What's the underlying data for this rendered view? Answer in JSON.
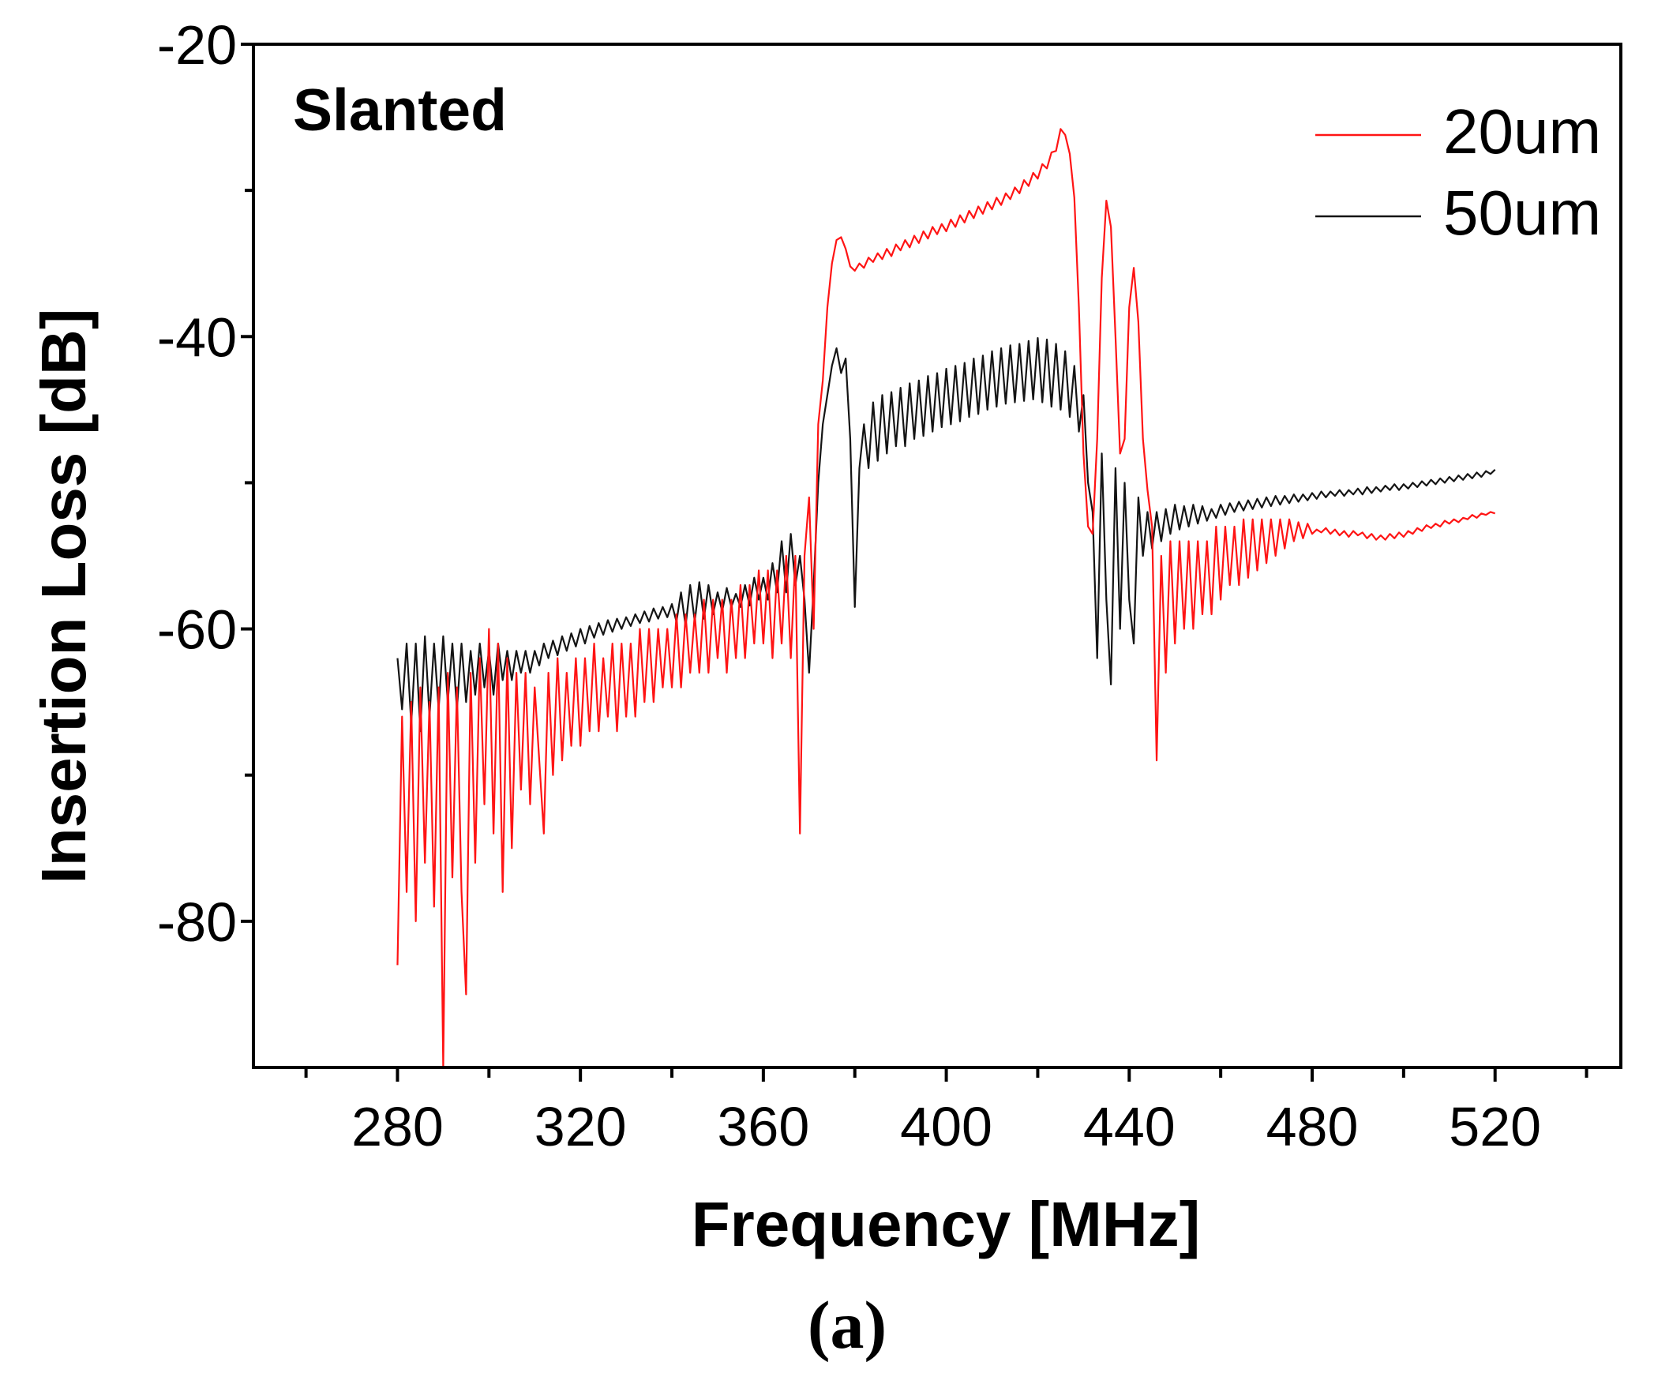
{
  "figure": {
    "panel_label": "(a)"
  },
  "chart_data": {
    "type": "line",
    "title": "",
    "xlabel": "Frequency [MHz]",
    "ylabel": "Insertion Loss [dB]",
    "xlim": [
      248.5,
      547.5
    ],
    "ylim": [
      -90,
      -20
    ],
    "x_ticks": [
      280,
      320,
      360,
      400,
      440,
      480,
      520
    ],
    "x_minor_ticks": [
      260,
      300,
      340,
      380,
      420,
      460,
      500,
      540
    ],
    "y_ticks": [
      -20,
      -40,
      -60,
      -80
    ],
    "y_minor_ticks": [
      -30,
      -50,
      -70
    ],
    "grid": false,
    "legend_position": "top-right",
    "annotations": [
      "Slanted"
    ],
    "x": [
      280,
      281,
      282,
      283,
      284,
      285,
      286,
      287,
      288,
      289,
      290,
      291,
      292,
      293,
      294,
      295,
      296,
      297,
      298,
      299,
      300,
      301,
      302,
      303,
      304,
      305,
      306,
      307,
      308,
      309,
      310,
      311,
      312,
      313,
      314,
      315,
      316,
      317,
      318,
      319,
      320,
      321,
      322,
      323,
      324,
      325,
      326,
      327,
      328,
      329,
      330,
      331,
      332,
      333,
      334,
      335,
      336,
      337,
      338,
      339,
      340,
      341,
      342,
      343,
      344,
      345,
      346,
      347,
      348,
      349,
      350,
      351,
      352,
      353,
      354,
      355,
      356,
      357,
      358,
      359,
      360,
      361,
      362,
      363,
      364,
      365,
      366,
      367,
      368,
      369,
      370,
      371,
      372,
      373,
      374,
      375,
      376,
      377,
      378,
      379,
      380,
      381,
      382,
      383,
      384,
      385,
      386,
      387,
      388,
      389,
      390,
      391,
      392,
      393,
      394,
      395,
      396,
      397,
      398,
      399,
      400,
      401,
      402,
      403,
      404,
      405,
      406,
      407,
      408,
      409,
      410,
      411,
      412,
      413,
      414,
      415,
      416,
      417,
      418,
      419,
      420,
      421,
      422,
      423,
      424,
      425,
      426,
      427,
      428,
      429,
      430,
      431,
      432,
      433,
      434,
      435,
      436,
      437,
      438,
      439,
      440,
      441,
      442,
      443,
      444,
      445,
      446,
      447,
      448,
      449,
      450,
      451,
      452,
      453,
      454,
      455,
      456,
      457,
      458,
      459,
      460,
      461,
      462,
      463,
      464,
      465,
      466,
      467,
      468,
      469,
      470,
      471,
      472,
      473,
      474,
      475,
      476,
      477,
      478,
      479,
      480,
      481,
      482,
      483,
      484,
      485,
      486,
      487,
      488,
      489,
      490,
      491,
      492,
      493,
      494,
      495,
      496,
      497,
      498,
      499,
      500,
      501,
      502,
      503,
      504,
      505,
      506,
      507,
      508,
      509,
      510,
      511,
      512,
      513,
      514,
      515,
      516,
      517,
      518,
      519,
      520
    ],
    "series": [
      {
        "name": "20um",
        "color": "#ff1414",
        "values": [
          -83,
          -66,
          -78,
          -65,
          -80,
          -64,
          -76,
          -65,
          -79,
          -64,
          -90,
          -63,
          -77,
          -64,
          -78,
          -85,
          -63,
          -76,
          -62,
          -72,
          -60,
          -74,
          -61,
          -78,
          -62,
          -75,
          -63,
          -71,
          -63,
          -72,
          -64,
          -69,
          -74,
          -63,
          -70,
          -62,
          -69,
          -63,
          -68,
          -62,
          -68,
          -62,
          -67,
          -61,
          -67,
          -62,
          -66,
          -61,
          -67,
          -61,
          -66,
          -61,
          -66,
          -60,
          -65,
          -60,
          -65,
          -60,
          -64,
          -60,
          -64,
          -59,
          -64,
          -59,
          -63,
          -59,
          -63,
          -58,
          -63,
          -58,
          -62,
          -58,
          -63,
          -58,
          -62,
          -57,
          -62,
          -57,
          -61,
          -56,
          -61,
          -56,
          -62,
          -56,
          -61,
          -55,
          -62,
          -55,
          -74,
          -55,
          -51,
          -60,
          -46,
          -43,
          -38,
          -35,
          -33.4,
          -33.2,
          -34,
          -35.2,
          -35.5,
          -35,
          -35.3,
          -34.6,
          -34.9,
          -34.3,
          -34.7,
          -34,
          -34.5,
          -33.7,
          -34.1,
          -33.4,
          -33.9,
          -33.1,
          -33.6,
          -32.8,
          -33.3,
          -32.5,
          -33,
          -32.3,
          -32.8,
          -32,
          -32.5,
          -31.7,
          -32.2,
          -31.4,
          -31.9,
          -31.1,
          -31.6,
          -30.8,
          -31.3,
          -30.5,
          -31,
          -30.2,
          -30.6,
          -29.8,
          -30.2,
          -29.3,
          -29.7,
          -28.8,
          -29.2,
          -28.2,
          -28.5,
          -27.4,
          -27.3,
          -25.8,
          -26.2,
          -27.5,
          -30.5,
          -38,
          -48,
          -53,
          -53.5,
          -47,
          -36,
          -30.7,
          -32.5,
          -40,
          -48,
          -47,
          -38,
          -35.3,
          -39,
          -47,
          -50.5,
          -53,
          -69,
          -55,
          -63,
          -54,
          -61,
          -54,
          -60,
          -54,
          -60,
          -54,
          -59,
          -54,
          -59,
          -53,
          -58,
          -53,
          -57,
          -53,
          -57,
          -52.5,
          -56.5,
          -52.5,
          -56,
          -52.5,
          -55.5,
          -52.5,
          -55,
          -52.5,
          -54.5,
          -52.5,
          -54,
          -52.7,
          -53.8,
          -52.8,
          -53.5,
          -53.2,
          -53.4,
          -53.1,
          -53.5,
          -53.2,
          -53.6,
          -53.3,
          -53.7,
          -53.3,
          -53.6,
          -53.4,
          -53.8,
          -53.5,
          -53.9,
          -53.6,
          -53.9,
          -53.5,
          -53.8,
          -53.4,
          -53.7,
          -53.3,
          -53.5,
          -53.1,
          -53.3,
          -52.9,
          -53.1,
          -52.8,
          -53,
          -52.6,
          -52.8,
          -52.5,
          -52.7,
          -52.4,
          -52.5,
          -52.2,
          -52.4,
          -52.1,
          -52.2,
          -52,
          -52.1
        ]
      },
      {
        "name": "50um",
        "color": "#141414",
        "values": [
          -62,
          -65.5,
          -61,
          -66.5,
          -61,
          -67,
          -60.5,
          -66,
          -61,
          -65.5,
          -60.5,
          -65,
          -61,
          -65.5,
          -61,
          -65,
          -61.5,
          -64.5,
          -61,
          -64,
          -61.5,
          -64.5,
          -61,
          -63.5,
          -61.5,
          -63.5,
          -61.5,
          -63,
          -61.5,
          -63,
          -61.5,
          -62.5,
          -61,
          -62,
          -60.8,
          -61.8,
          -60.5,
          -61.5,
          -60.3,
          -61.2,
          -60,
          -61,
          -59.8,
          -60.6,
          -59.6,
          -60.4,
          -59.4,
          -60.2,
          -59.3,
          -60,
          -59.2,
          -59.8,
          -59,
          -59.6,
          -58.8,
          -59.5,
          -58.6,
          -59.3,
          -58.5,
          -59.2,
          -58.3,
          -59.5,
          -57.5,
          -59.8,
          -57,
          -59.5,
          -56.8,
          -59.3,
          -57,
          -59,
          -57.5,
          -58.8,
          -57.2,
          -58.5,
          -57.6,
          -58.5,
          -57,
          -58.4,
          -56.5,
          -58,
          -56.5,
          -58,
          -55.5,
          -57.5,
          -54,
          -57.5,
          -53.5,
          -57,
          -55,
          -58,
          -63,
          -57,
          -50,
          -46,
          -44,
          -42,
          -40.8,
          -42.5,
          -41.5,
          -47,
          -58.5,
          -49,
          -46,
          -49,
          -44.5,
          -48.5,
          -44,
          -48,
          -43.8,
          -47.5,
          -43.5,
          -47.5,
          -43.2,
          -47,
          -43,
          -46.8,
          -42.7,
          -46.5,
          -42.5,
          -46.2,
          -42.2,
          -46,
          -42,
          -45.8,
          -41.8,
          -45.5,
          -41.5,
          -45.3,
          -41.3,
          -45,
          -41,
          -44.8,
          -40.8,
          -44.6,
          -40.6,
          -44.5,
          -40.5,
          -44.4,
          -40.3,
          -44.3,
          -40.1,
          -44.5,
          -40.2,
          -44.8,
          -40.5,
          -45,
          -41,
          -45.5,
          -42,
          -46.5,
          -44,
          -50,
          -52,
          -62,
          -48,
          -58,
          -63.8,
          -49,
          -60,
          -50,
          -58,
          -61,
          -51,
          -55,
          -52,
          -54.5,
          -52,
          -54,
          -51.8,
          -53.5,
          -51.5,
          -53.2,
          -51.6,
          -53,
          -51.5,
          -52.8,
          -51.6,
          -52.6,
          -51.8,
          -52.4,
          -51.5,
          -52.2,
          -51.4,
          -52,
          -51.3,
          -51.9,
          -51.2,
          -51.8,
          -51.1,
          -51.7,
          -51,
          -51.6,
          -50.9,
          -51.5,
          -50.9,
          -51.4,
          -50.8,
          -51.3,
          -50.8,
          -51.2,
          -50.7,
          -51.1,
          -50.6,
          -51,
          -50.6,
          -50.9,
          -50.5,
          -50.9,
          -50.5,
          -50.8,
          -50.4,
          -50.8,
          -50.3,
          -50.7,
          -50.3,
          -50.6,
          -50.2,
          -50.5,
          -50.1,
          -50.5,
          -50.1,
          -50.4,
          -50,
          -50.3,
          -49.9,
          -50.2,
          -49.8,
          -50.1,
          -49.7,
          -50,
          -49.6,
          -49.9,
          -49.5,
          -49.8,
          -49.4,
          -49.7,
          -49.3,
          -49.6,
          -49.2,
          -49.4,
          -49.1
        ]
      }
    ]
  }
}
